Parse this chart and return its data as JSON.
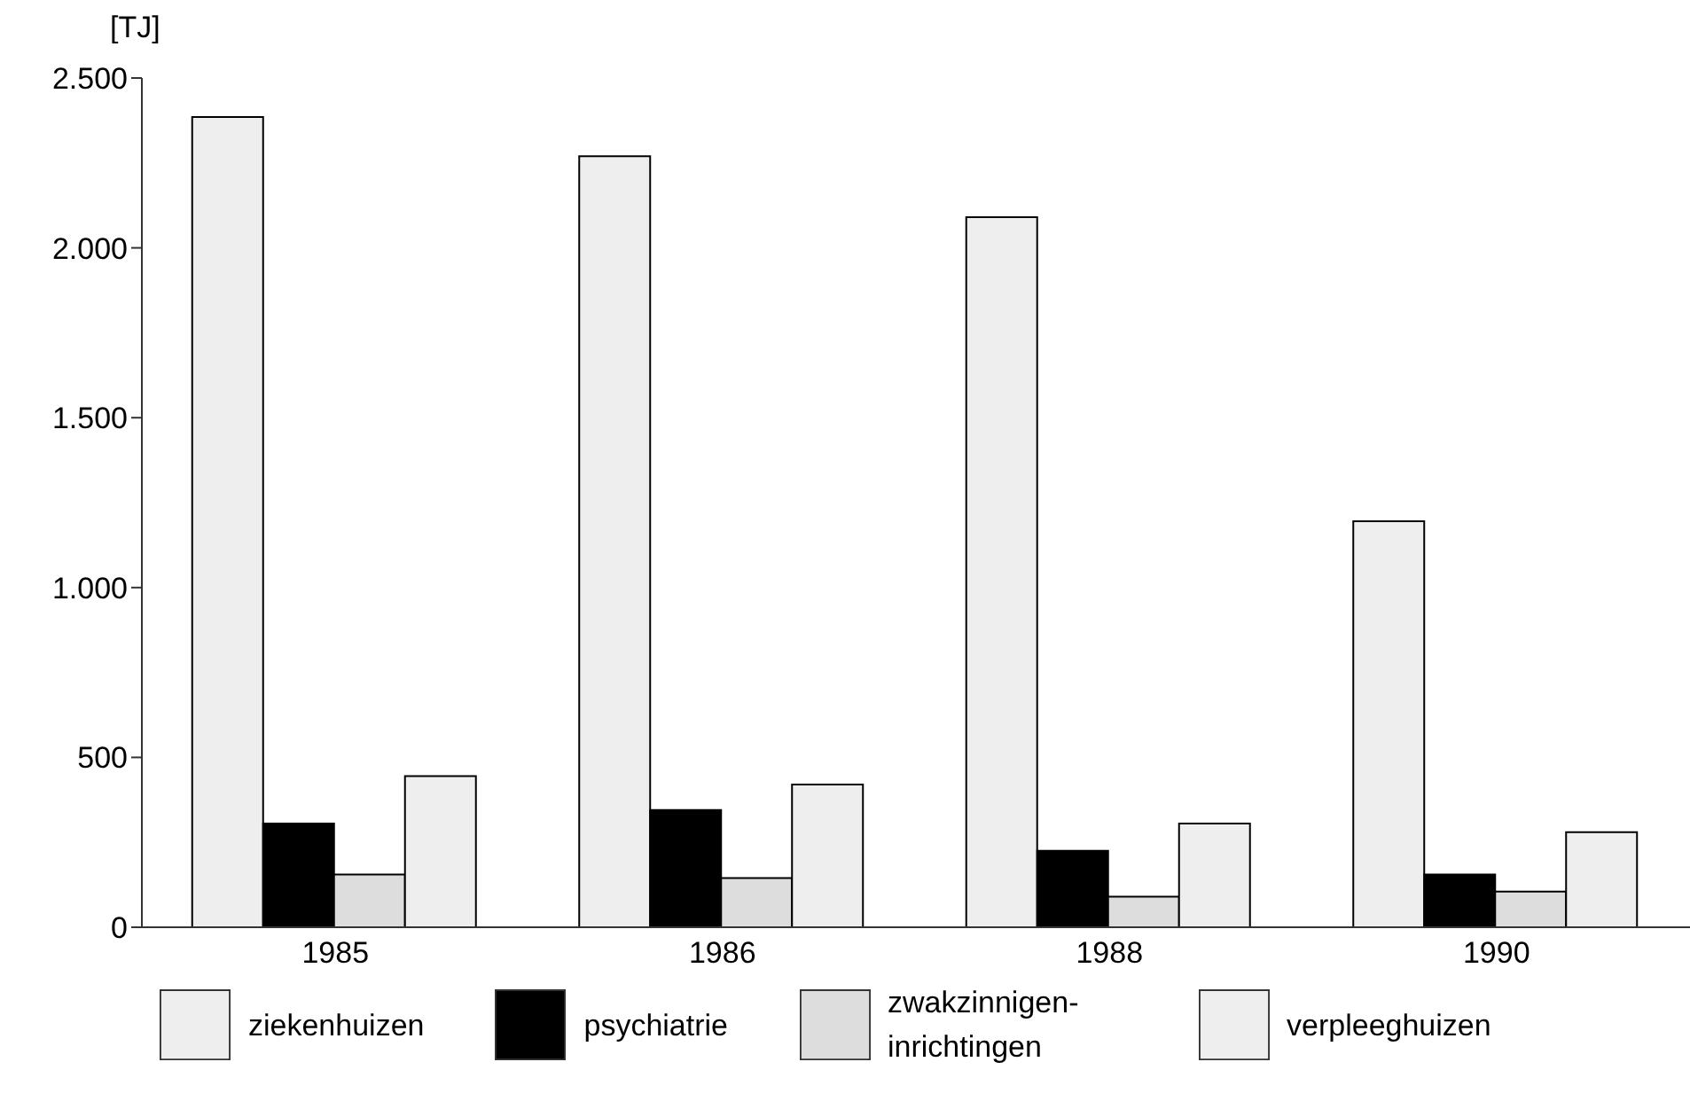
{
  "chart_data": {
    "type": "bar",
    "ylabel": "[TJ]",
    "categories": [
      "1985",
      "1986",
      "1988",
      "1990"
    ],
    "series": [
      {
        "name": "ziekenhuizen",
        "color": "#eeeeee",
        "values": [
          2385,
          2270,
          2090,
          1195
        ]
      },
      {
        "name": "psychiatrie",
        "color": "#000000",
        "values": [
          305,
          345,
          225,
          155
        ]
      },
      {
        "name": "zwakzinnigen-inrichtingen",
        "color": "#dddddd",
        "values": [
          155,
          145,
          90,
          105
        ]
      },
      {
        "name": "verpleeghuizen",
        "color": "#eeeeee",
        "values": [
          445,
          420,
          305,
          280
        ]
      }
    ],
    "ylim": [
      0,
      2500
    ],
    "yticks": [
      0,
      {
        "value": 500,
        "label": "500"
      },
      {
        "value": 1000,
        "label": "1.000"
      },
      {
        "value": 1500,
        "label": "1.500"
      },
      {
        "value": 2000,
        "label": "2.000"
      },
      {
        "value": 2500,
        "label": "2.500"
      }
    ],
    "grid": false,
    "legend": "bottom"
  }
}
